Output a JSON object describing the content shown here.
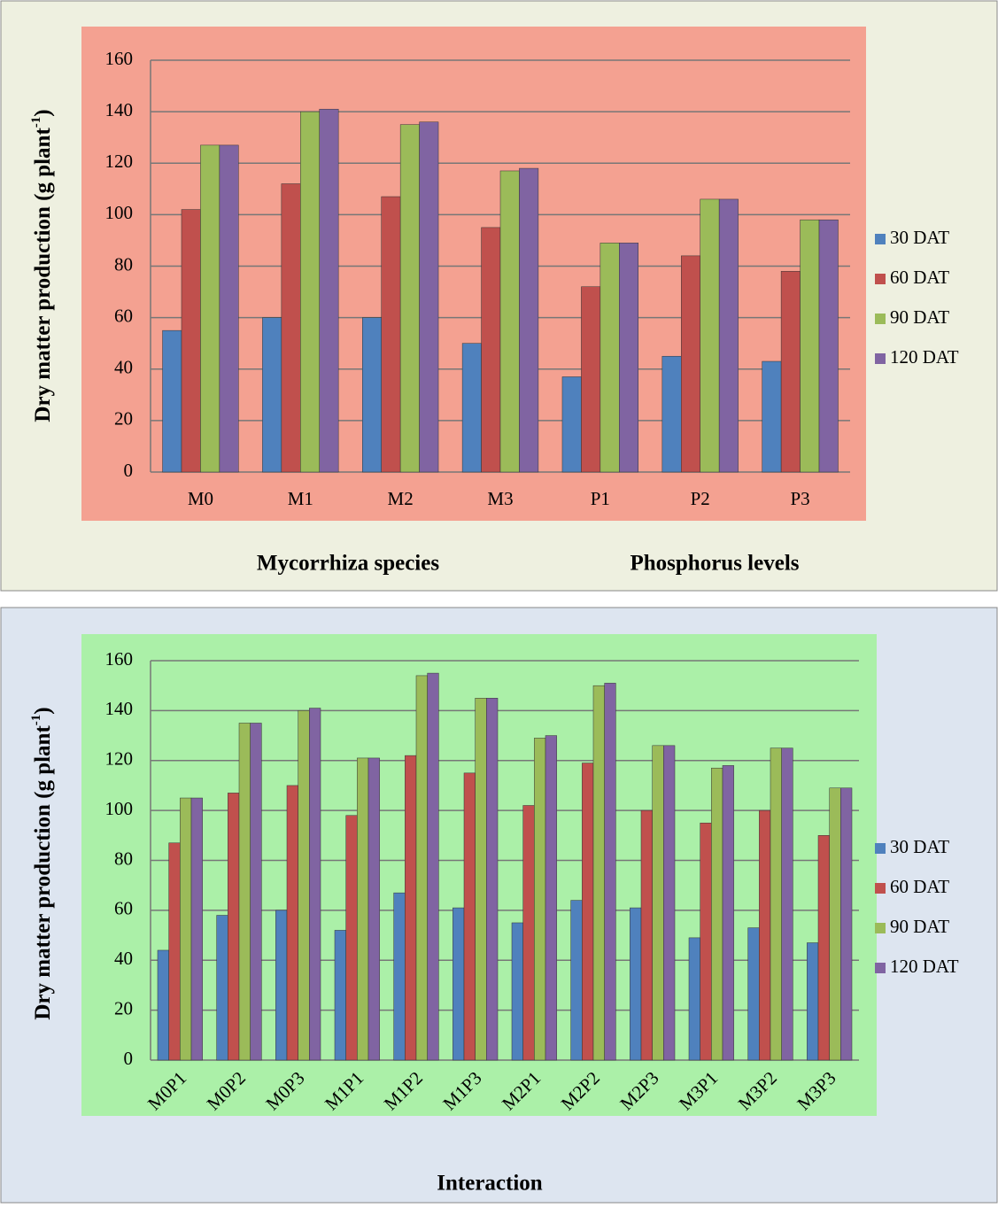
{
  "chart_data": [
    {
      "type": "bar",
      "ylabel": [
        "Dry matter production (g plant",
        "-1",
        ")"
      ],
      "xlabels": [
        "Mycorrhiza species",
        "Phosphorus levels"
      ],
      "categories": [
        "M0",
        "M1",
        "M2",
        "M3",
        "P1",
        "P2",
        "P3"
      ],
      "series": [
        {
          "name": "30 DAT",
          "color": "#4f81bd",
          "values": [
            55,
            60,
            60,
            50,
            37,
            45,
            43
          ]
        },
        {
          "name": "60 DAT",
          "color": "#c0504d",
          "values": [
            102,
            112,
            107,
            95,
            72,
            84,
            78
          ]
        },
        {
          "name": "90 DAT",
          "color": "#9bbb59",
          "values": [
            127,
            140,
            135,
            117,
            89,
            106,
            98
          ]
        },
        {
          "name": "120 DAT",
          "color": "#8064a2",
          "values": [
            127,
            141,
            136,
            118,
            89,
            106,
            98
          ]
        }
      ],
      "ylim": [
        0,
        160
      ],
      "yticks": [
        0,
        20,
        40,
        60,
        80,
        100,
        120,
        140,
        160
      ],
      "grid": true,
      "legend": "right"
    },
    {
      "type": "bar",
      "ylabel": [
        "Dry matter production (g plant",
        "-1",
        ")"
      ],
      "xlabels": [
        "Interaction"
      ],
      "categories": [
        "M0P1",
        "M0P2",
        "M0P3",
        "M1P1",
        "M1P2",
        "M1P3",
        "M2P1",
        "M2P2",
        "M2P3",
        "M3P1",
        "M3P2",
        "M3P3"
      ],
      "series": [
        {
          "name": "30 DAT",
          "color": "#4f81bd",
          "values": [
            44,
            58,
            60,
            52,
            67,
            61,
            55,
            64,
            61,
            49,
            53,
            47
          ]
        },
        {
          "name": "60 DAT",
          "color": "#c0504d",
          "values": [
            87,
            107,
            110,
            98,
            122,
            115,
            102,
            119,
            100,
            95,
            100,
            90
          ]
        },
        {
          "name": "90 DAT",
          "color": "#9bbb59",
          "values": [
            105,
            135,
            140,
            121,
            154,
            145,
            129,
            150,
            126,
            117,
            125,
            109
          ]
        },
        {
          "name": "120 DAT",
          "color": "#8064a2",
          "values": [
            105,
            135,
            141,
            121,
            155,
            145,
            130,
            151,
            126,
            118,
            125,
            109
          ]
        }
      ],
      "ylim": [
        0,
        160
      ],
      "yticks": [
        0,
        20,
        40,
        60,
        80,
        100,
        120,
        140,
        160
      ],
      "grid": true,
      "legend": "right"
    }
  ]
}
